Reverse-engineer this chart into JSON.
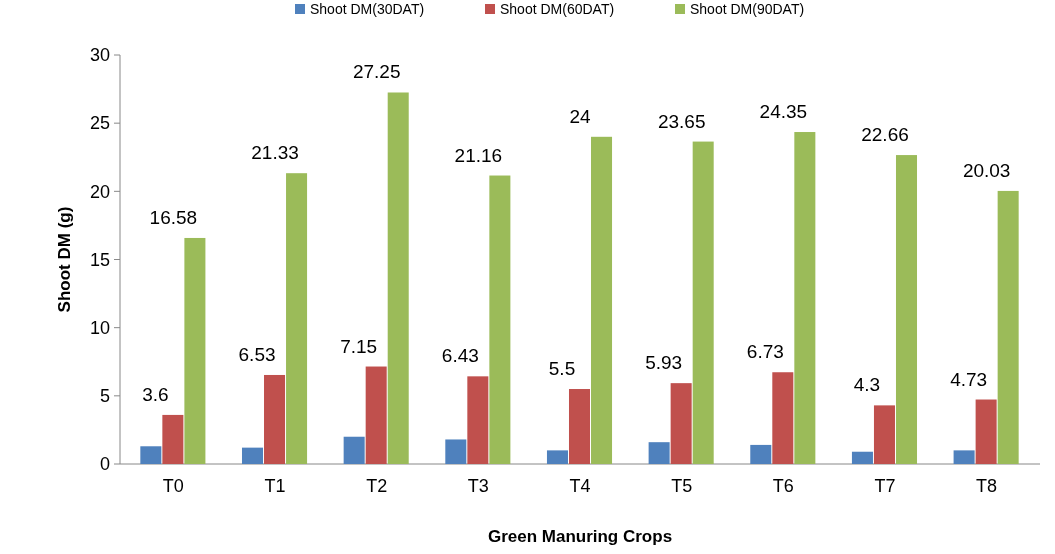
{
  "chart_data": {
    "type": "bar",
    "xlabel": "Green Manuring Crops",
    "ylabel": "Shoot DM (g)",
    "categories": [
      "T0",
      "T1",
      "T2",
      "T3",
      "T4",
      "T5",
      "T6",
      "T7",
      "T8"
    ],
    "series": [
      {
        "name": "Shoot DM(30DAT)",
        "color": "#4f81bd",
        "values": [
          1.3,
          1.2,
          2.0,
          1.8,
          1.0,
          1.6,
          1.4,
          0.9,
          1.0
        ]
      },
      {
        "name": "Shoot DM(60DAT)",
        "color": "#c0504d",
        "values": [
          3.6,
          6.53,
          7.15,
          6.43,
          5.5,
          5.93,
          6.73,
          4.3,
          4.73
        ],
        "value_labels": [
          "3.6",
          "6.53",
          "7.15",
          "6.43",
          "5.5",
          "5.93",
          "6.73",
          "4.3",
          "4.73"
        ]
      },
      {
        "name": "Shoot DM(90DAT)",
        "color": "#9bbb59",
        "values": [
          16.58,
          21.33,
          27.25,
          21.16,
          24,
          23.65,
          24.35,
          22.66,
          20.03
        ],
        "value_labels": [
          "16.58",
          "21.33",
          "27.25",
          "21.16",
          "24",
          "23.65",
          "24.35",
          "22.66",
          "20.03"
        ]
      }
    ],
    "ylim": [
      0,
      30
    ],
    "yticks": [
      0,
      5,
      10,
      15,
      20,
      25,
      30
    ],
    "grid": false,
    "legend": "top"
  }
}
